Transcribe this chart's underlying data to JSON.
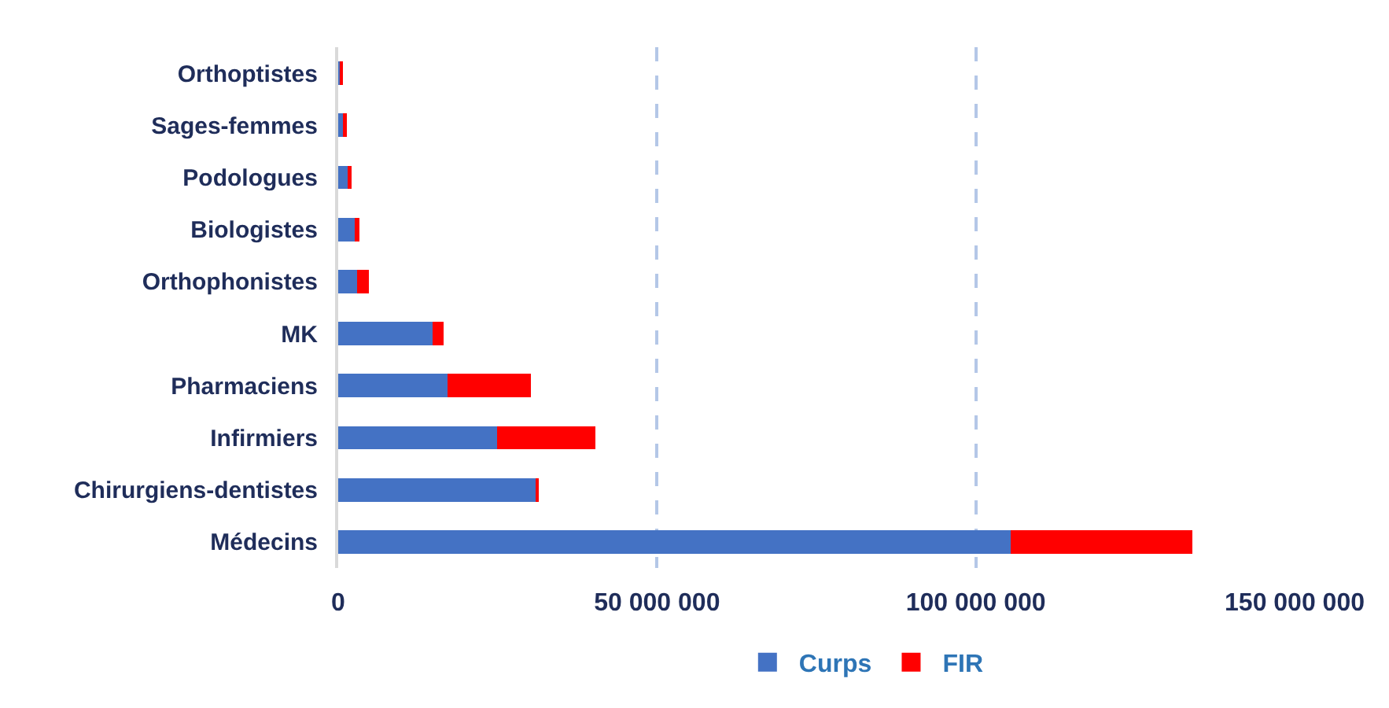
{
  "chart_data": {
    "type": "bar",
    "orientation": "horizontal",
    "stacked": true,
    "categories": [
      "Orthoptistes",
      "Sages-femmes",
      "Podologues",
      "Biologistes",
      "Orthophonistes",
      "MK",
      "Pharmaciens",
      "Infirmiers",
      "Chirurgiens-dentistes",
      "Médecins"
    ],
    "series": [
      {
        "name": "Curps",
        "color": "#4472c4",
        "values": [
          200000,
          900000,
          1700000,
          2600000,
          2900000,
          14800000,
          17200000,
          24900000,
          30900000,
          105500000
        ]
      },
      {
        "name": "FIR",
        "color": "#ff0000",
        "values": [
          600000,
          400000,
          400000,
          700000,
          1900000,
          1700000,
          13000000,
          15400000,
          500000,
          28500000
        ]
      }
    ],
    "xlim": [
      0,
      150000000
    ],
    "xticks": [
      {
        "value": 0,
        "label": "0"
      },
      {
        "value": 50000000,
        "label": "50 000 000"
      },
      {
        "value": 100000000,
        "label": "100 000 000"
      },
      {
        "value": 150000000,
        "label": "150 000 000"
      }
    ],
    "grid": "x",
    "legend": "bottom"
  }
}
